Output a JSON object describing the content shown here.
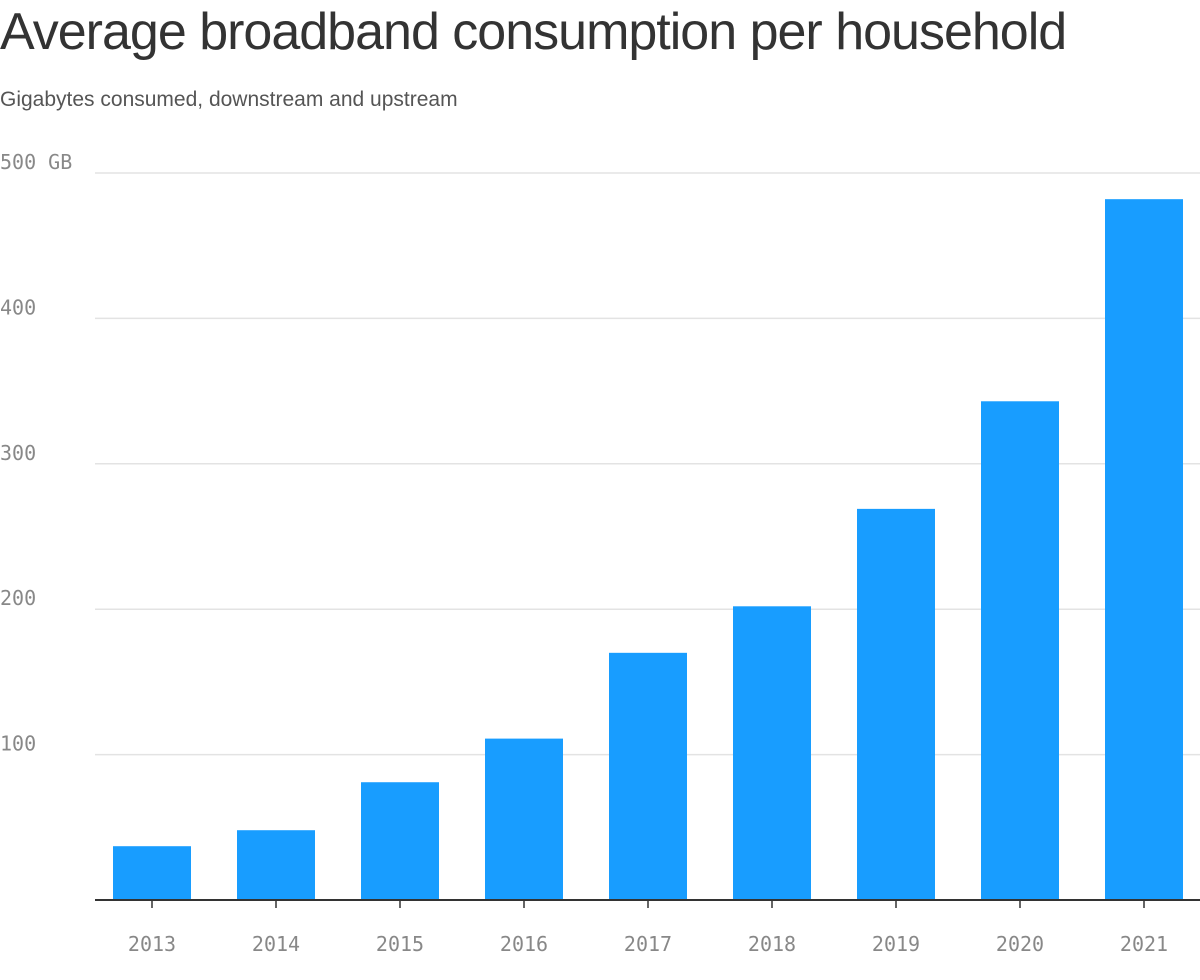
{
  "chart_data": {
    "type": "bar",
    "title": "Average broadband consumption per household",
    "subtitle": "Gigabytes consumed, downstream and upstream",
    "categories": [
      "2013",
      "2014",
      "2015",
      "2016",
      "2017",
      "2018",
      "2019",
      "2020",
      "2021"
    ],
    "values": [
      37,
      48,
      81,
      111,
      170,
      202,
      269,
      343,
      482
    ],
    "ylim": [
      0,
      500
    ],
    "yticks": [
      100,
      200,
      300,
      400,
      500
    ],
    "ytick_labels": [
      "100",
      "200",
      "300",
      "400",
      "500 GB"
    ],
    "xlabel": "",
    "ylabel": "",
    "grid": true,
    "legend": "none",
    "colors": {
      "bar": "#189dff",
      "grid": "#e3e3e3",
      "axis": "#333333",
      "title": "#333333",
      "subtitle": "#555555",
      "tick_label": "#888888"
    }
  }
}
